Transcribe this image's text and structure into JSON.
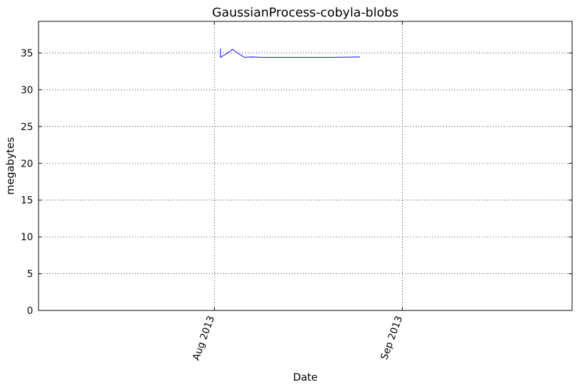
{
  "chart_data": {
    "type": "line",
    "title": "GaussianProcess-cobyla-blobs",
    "xlabel": "Date",
    "ylabel": "megabytes",
    "x_type": "date",
    "xlim": [
      "2013-07-03",
      "2013-09-29"
    ],
    "ylim": [
      0,
      39.3
    ],
    "yticks": [
      0,
      5,
      10,
      15,
      20,
      25,
      30,
      35
    ],
    "xticks": [
      {
        "date": "2013-08-01",
        "label": "Aug 2013"
      },
      {
        "date": "2013-09-01",
        "label": "Sep 2013"
      }
    ],
    "grid": true,
    "series": [
      {
        "color": "#0000ff",
        "x": [
          "2013-08-02",
          "2013-08-02",
          "2013-08-03",
          "2013-08-04",
          "2013-08-05",
          "2013-08-06",
          "2013-08-07",
          "2013-08-09",
          "2013-08-12",
          "2013-08-16",
          "2013-08-20",
          "2013-08-25"
        ],
        "values": [
          35.6,
          34.4,
          34.9,
          35.5,
          34.9,
          34.4,
          34.45,
          34.4,
          34.4,
          34.4,
          34.4,
          34.45
        ]
      }
    ]
  }
}
